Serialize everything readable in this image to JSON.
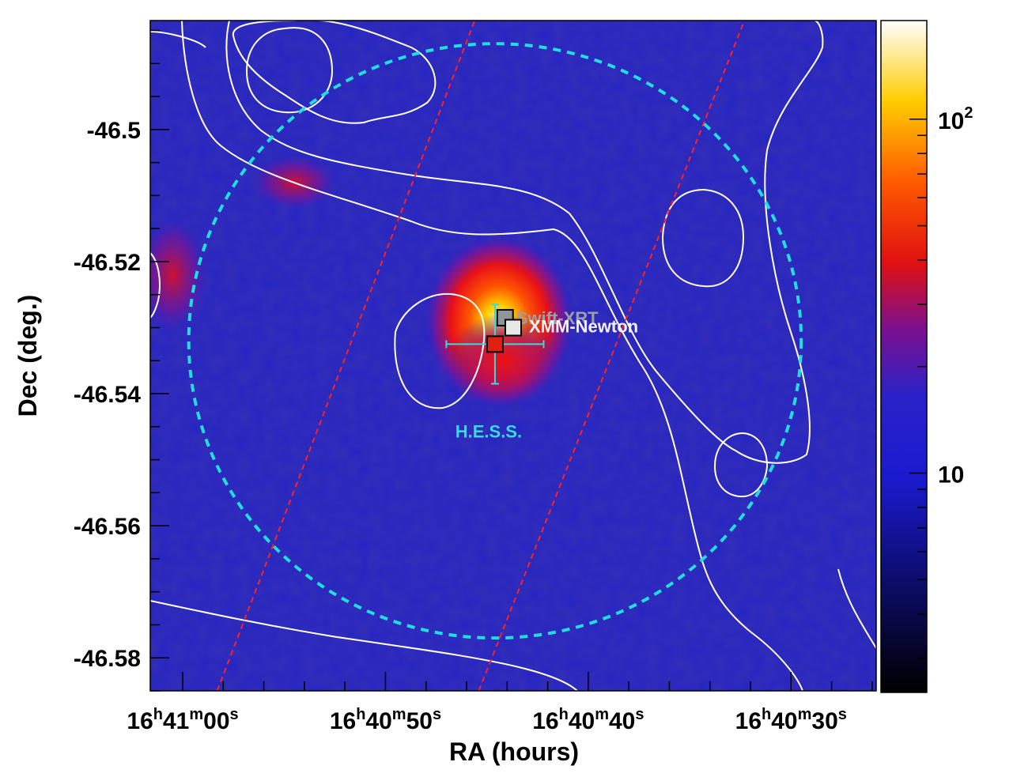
{
  "chart_data": {
    "type": "heatmap",
    "xlabel": "RA (hours)",
    "ylabel": "Dec (deg.)",
    "x_ticks": [
      {
        "h": "16",
        "m": "41",
        "s": "00",
        "ra_sec": 60
      },
      {
        "h": "16",
        "m": "40",
        "s": "50",
        "ra_sec": 50
      },
      {
        "h": "16",
        "m": "40",
        "s": "40",
        "ra_sec": 40
      },
      {
        "h": "16",
        "m": "40",
        "s": "30",
        "ra_sec": 30
      }
    ],
    "x_range_ra_sec": [
      61.6,
      25.8
    ],
    "y_ticks": [
      {
        "label": "-46.5",
        "value": -46.5
      },
      {
        "label": "-46.52",
        "value": -46.52
      },
      {
        "label": "-46.54",
        "value": -46.54
      },
      {
        "label": "-46.56",
        "value": -46.56
      },
      {
        "label": "-46.58",
        "value": -46.58
      }
    ],
    "y_range": [
      -46.585,
      -46.4835
    ],
    "colorbar": {
      "scale": "log",
      "range": [
        2.4,
        190
      ],
      "ticks": [
        {
          "label": "10",
          "value": 10
        },
        {
          "label": "10",
          "sup": "2",
          "value": 100
        }
      ]
    },
    "sources": [
      {
        "name": "Swift-XRT",
        "ra_sec": 44.1,
        "dec": -46.5285,
        "color": "#9aa0a6",
        "marker": "square-gray"
      },
      {
        "name": "XMM-Newton",
        "ra_sec": 43.7,
        "dec": -46.53,
        "color": "#f2f2f2",
        "marker": "square-white"
      },
      {
        "name": "H.E.S.S.",
        "ra_sec": 44.6,
        "dec": -46.5325,
        "color": "#33dddd",
        "marker": "square-red",
        "err_ra_sec": [
          2.4,
          2.4
        ],
        "err_dec": [
          0.006,
          0.006
        ]
      }
    ],
    "hess_circle": {
      "center_ra_sec": 44.6,
      "center_dec": -46.532,
      "radius_dec": 0.045,
      "color": "#22dddd",
      "style": "dashed"
    },
    "band_lines": [
      {
        "color": "#ff2020",
        "style": "dashed",
        "points": [
          [
            58.3,
            -46.585
          ],
          [
            45.6,
            -46.4835
          ]
        ]
      },
      {
        "color": "#ff2020",
        "style": "dashed",
        "points": [
          [
            45.4,
            -46.585
          ],
          [
            32.3,
            -46.4835
          ]
        ]
      }
    ],
    "emission_peaks": [
      {
        "ra_sec": 44.4,
        "dec": -46.529,
        "amplitude": 180
      },
      {
        "ra_sec": 44.2,
        "dec": -46.535,
        "amplitude": 60
      },
      {
        "ra_sec": 54.5,
        "dec": -46.508,
        "amplitude": 35
      },
      {
        "ra_sec": 60.5,
        "dec": -46.522,
        "amplitude": 28
      }
    ],
    "contours": {
      "color": "#ffffff"
    }
  }
}
